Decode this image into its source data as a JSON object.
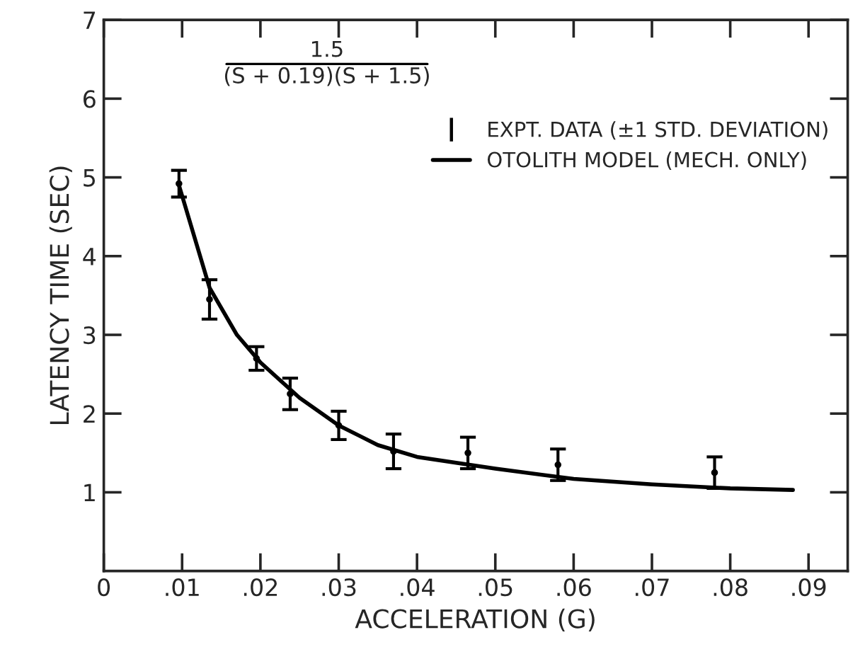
{
  "chart_data": {
    "type": "line",
    "xlabel": "ACCELERATION (G)",
    "ylabel": "LATENCY TIME (SEC)",
    "annotations": [
      "1.5",
      "(S + 0.19)(S + 1.5)"
    ],
    "series": [
      {
        "name": "EXPT. DATA (±1 STD. DEVIATION)",
        "type": "scatter",
        "color": "#000000",
        "x": [
          0.0096,
          0.0135,
          0.0195,
          0.0238,
          0.03,
          0.037,
          0.0465,
          0.058,
          0.078
        ],
        "values": [
          4.92,
          3.45,
          2.7,
          2.25,
          1.85,
          1.52,
          1.5,
          1.35,
          1.25
        ],
        "errors": [
          0.17,
          0.25,
          0.15,
          0.2,
          0.18,
          0.22,
          0.2,
          0.2,
          0.2
        ]
      },
      {
        "name": "OTOLITH MODEL (MECH. ONLY)",
        "color": "#000000",
        "x": [
          0.0096,
          0.0135,
          0.017,
          0.02,
          0.025,
          0.03,
          0.035,
          0.04,
          0.05,
          0.06,
          0.07,
          0.08,
          0.088
        ],
        "values": [
          4.9,
          3.6,
          3.0,
          2.65,
          2.2,
          1.85,
          1.6,
          1.45,
          1.3,
          1.17,
          1.1,
          1.05,
          1.03
        ]
      }
    ],
    "xlim": [
      0,
      0.095
    ],
    "ylim": [
      0,
      7
    ],
    "xticks": [
      0,
      {
        "value": 0.01,
        "label": ".01"
      },
      {
        "value": 0.02,
        "label": ".02"
      },
      {
        "value": 0.03,
        "label": ".03"
      },
      {
        "value": 0.04,
        "label": ".04"
      },
      {
        "value": 0.05,
        "label": ".05"
      },
      {
        "value": 0.06,
        "label": ".06"
      },
      {
        "value": 0.07,
        "label": ".07"
      },
      {
        "value": 0.08,
        "label": ".08"
      },
      {
        "value": 0.09,
        "label": ".09"
      }
    ],
    "yticks": [
      1,
      2,
      3,
      4,
      5,
      6,
      7
    ],
    "grid": false,
    "legend": "top right"
  }
}
